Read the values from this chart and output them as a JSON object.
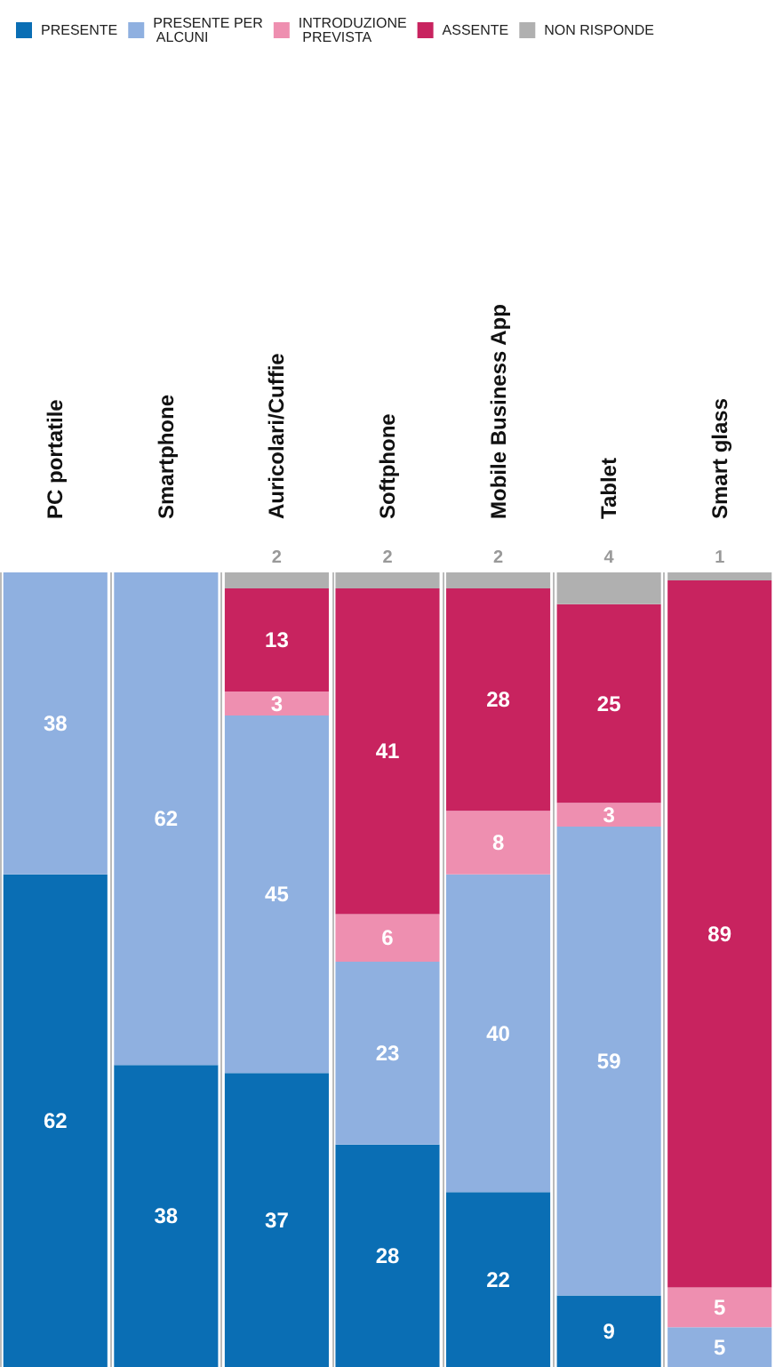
{
  "chart_data": {
    "type": "bar",
    "stacked": true,
    "data_labels": true,
    "grid": "x",
    "legend": "top",
    "categories": [
      "PC portatile",
      "Smartphone",
      "Auricolari/Cuffie",
      "Softphone",
      "Mobile Business App",
      "Tablet",
      "Smart glass"
    ],
    "ylim": [
      0,
      100
    ],
    "series": [
      {
        "name": "PRESENTE",
        "color": "#0a6eb4",
        "values": [
          62,
          38,
          37,
          28,
          22,
          9,
          null
        ]
      },
      {
        "name": "PRESENTE PER ALCUNI",
        "color": "#8fb0e0",
        "values": [
          38,
          62,
          45,
          23,
          40,
          59,
          5
        ]
      },
      {
        "name": "INTRODUZIONE PREVISTA",
        "color": "#ee8fb0",
        "values": [
          null,
          null,
          3,
          6,
          8,
          3,
          5
        ]
      },
      {
        "name": "ASSENTE",
        "color": "#c8235f",
        "values": [
          null,
          null,
          13,
          41,
          28,
          25,
          89
        ]
      },
      {
        "name": "NON RISPONDE",
        "color": "#b0b0b0",
        "values": [
          null,
          null,
          2,
          2,
          2,
          4,
          1
        ]
      }
    ]
  }
}
